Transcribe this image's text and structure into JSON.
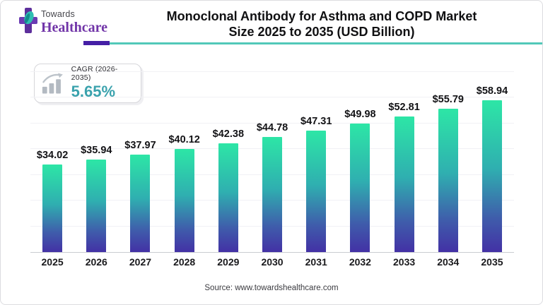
{
  "brand": {
    "towards": "Towards",
    "healthcare": "Healthcare",
    "purple": "#5d2f9c",
    "teal": "#2fbfb2"
  },
  "header": {
    "title_line1": "Monoclonal Antibody for Asthma and COPD Market",
    "title_line2": "Size 2025 to 2035 (USD Billion)"
  },
  "cagr": {
    "label": "CAGR (2026-2035)",
    "value": "5.65%",
    "value_color": "#3aa2ad"
  },
  "chart_data": {
    "type": "bar",
    "title": "Monoclonal Antibody for Asthma and COPD Market Size 2025 to 2035 (USD Billion)",
    "categories": [
      "2025",
      "2026",
      "2027",
      "2028",
      "2029",
      "2030",
      "2031",
      "2032",
      "2033",
      "2034",
      "2035"
    ],
    "values": [
      34.02,
      35.94,
      37.97,
      40.12,
      42.38,
      44.78,
      47.31,
      49.98,
      52.81,
      55.79,
      58.94
    ],
    "value_labels": [
      "$34.02",
      "$35.94",
      "$37.97",
      "$40.12",
      "$42.38",
      "$44.78",
      "$47.31",
      "$49.98",
      "$52.81",
      "$55.79",
      "$58.94"
    ],
    "xlabel": "",
    "ylabel": "",
    "ylim": [
      0,
      70
    ],
    "grid": "faint horizontal lines every 10 units",
    "legend": "none",
    "bar_gradient": {
      "top": "#2de6a6",
      "mid": "#2fafb0",
      "late": "#3f5cab",
      "bottom": "#4331a5"
    }
  },
  "footer": {
    "source": "Source: www.towardshealthcare.com"
  }
}
